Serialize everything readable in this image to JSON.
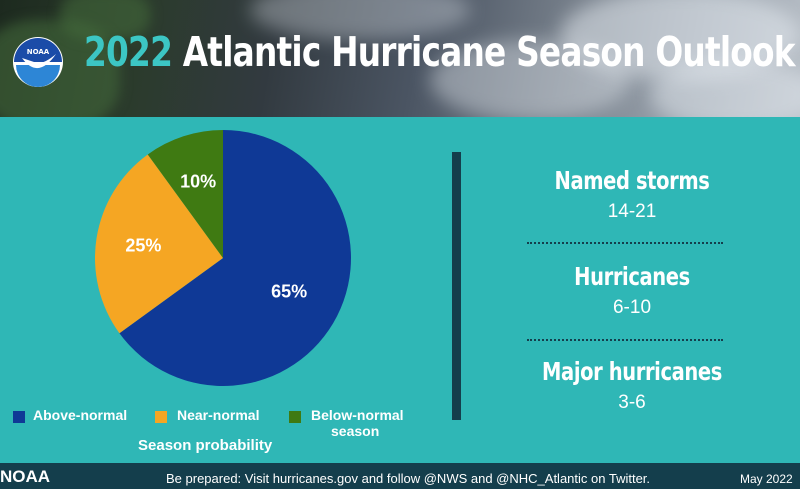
{
  "header": {
    "title_year": "2022",
    "title_rest": "Atlantic Hurricane Season Outlook",
    "logo_text": "NOAA"
  },
  "chart_data": {
    "type": "pie",
    "title": "Season probability",
    "slices": [
      {
        "label": "Above-normal",
        "value": 65,
        "display": "65%",
        "color": "#0f3996"
      },
      {
        "label": "Near-normal",
        "value": 25,
        "display": "25%",
        "color": "#f5a623"
      },
      {
        "label": "Below-normal season",
        "value": 10,
        "display": "10%",
        "color": "#3f7a12"
      }
    ],
    "legend": [
      "Above-normal",
      "Near-normal",
      "Below-normal",
      "season"
    ],
    "legend_placement": "bottom"
  },
  "stats": [
    {
      "label": "Named storms",
      "value": "14-21"
    },
    {
      "label": "Hurricanes",
      "value": "6-10"
    },
    {
      "label": "Major hurricanes",
      "value": "3-6"
    }
  ],
  "footer": {
    "org": "NOAA",
    "text": "Be prepared: Visit hurricanes.gov and follow @NWS and @NHC_Atlantic on Twitter.",
    "date": "May 2022"
  },
  "colors": {
    "background": "#2fb7b6",
    "dark_teal": "#143e4c",
    "title_year": "#3cc6c4"
  }
}
